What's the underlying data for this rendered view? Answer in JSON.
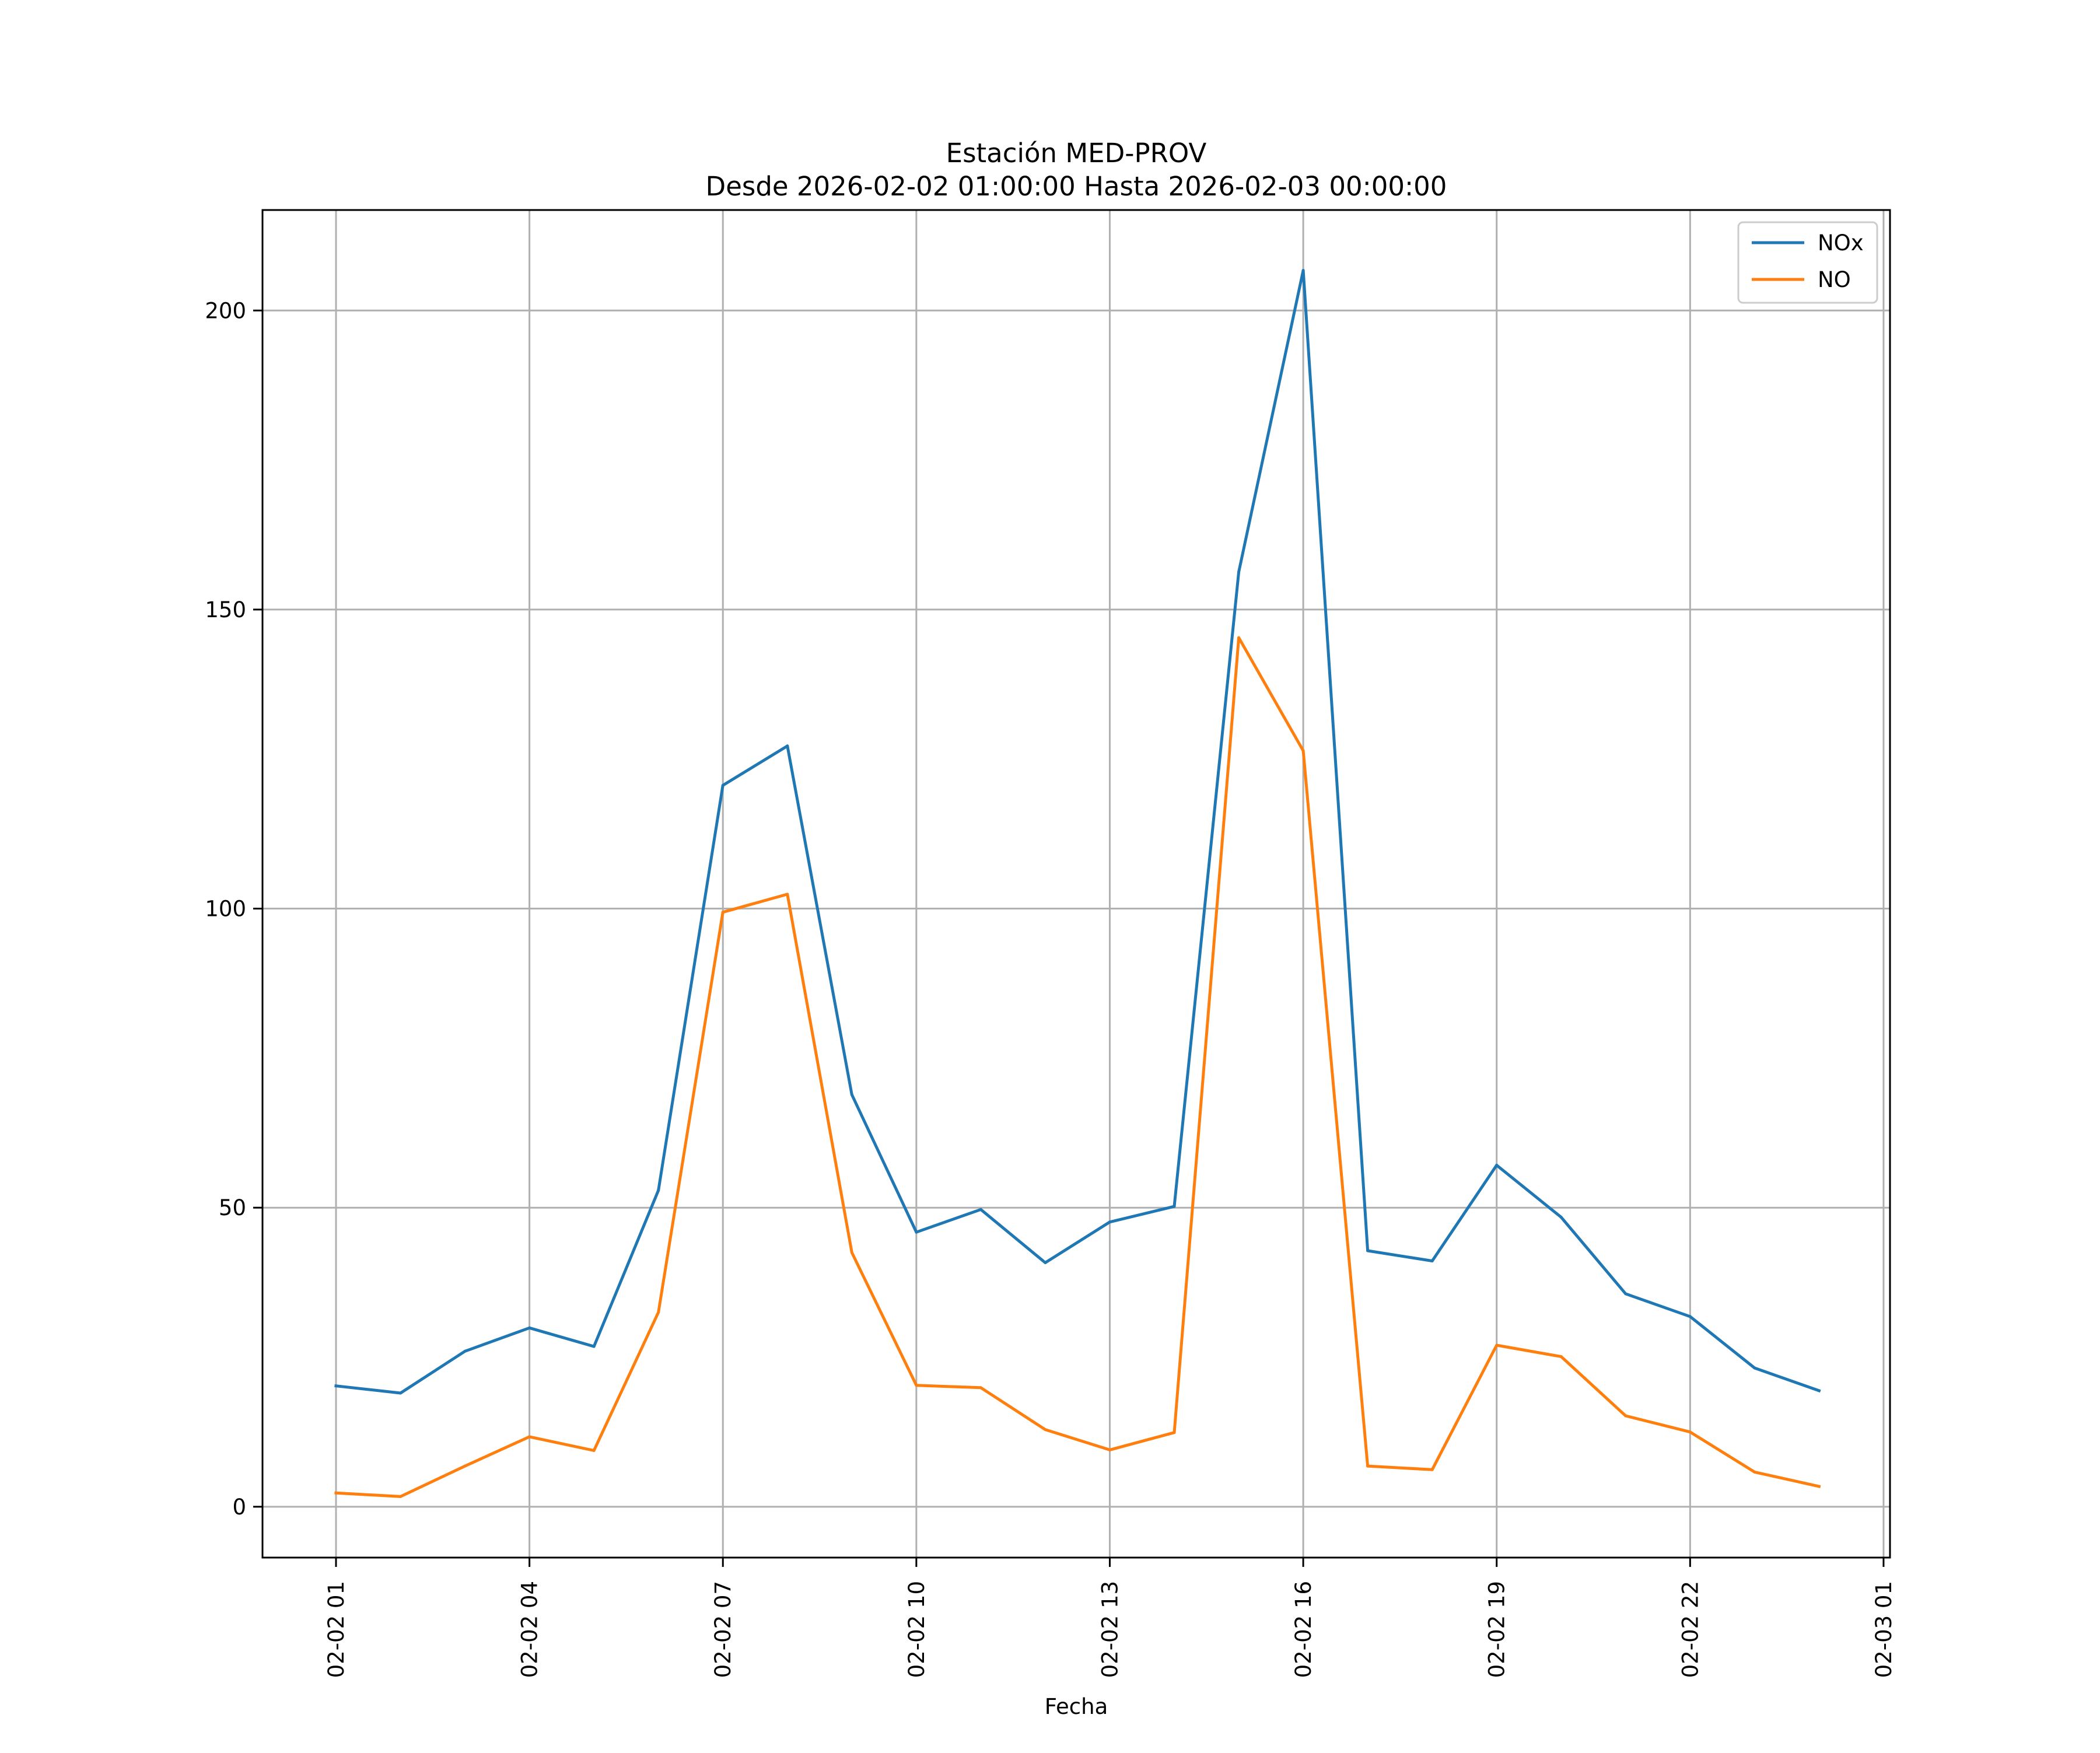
{
  "chart_data": {
    "type": "line",
    "title": "Estación MED-PROV",
    "subtitle": "Desde 2026-02-02 01:00:00 Hasta 2026-02-03 00:00:00",
    "xlabel": "Fecha",
    "ylabel": "",
    "x": [
      "02-02 01",
      "02-02 02",
      "02-02 03",
      "02-02 04",
      "02-02 05",
      "02-02 06",
      "02-02 07",
      "02-02 08",
      "02-02 09",
      "02-02 10",
      "02-02 11",
      "02-02 12",
      "02-02 13",
      "02-02 14",
      "02-02 15",
      "02-02 16",
      "02-02 17",
      "02-02 18",
      "02-02 19",
      "02-02 20",
      "02-02 21",
      "02-02 22",
      "02-02 23",
      "02-03 00"
    ],
    "x_hours": [
      0,
      1,
      2,
      3,
      4,
      5,
      6,
      7,
      8,
      9,
      10,
      11,
      12,
      13,
      14,
      15,
      16,
      17,
      18,
      19,
      20,
      21,
      22,
      23
    ],
    "xticks": [
      {
        "label": "02-02 01",
        "hour": 0
      },
      {
        "label": "02-02 04",
        "hour": 3
      },
      {
        "label": "02-02 07",
        "hour": 6
      },
      {
        "label": "02-02 10",
        "hour": 9
      },
      {
        "label": "02-02 13",
        "hour": 12
      },
      {
        "label": "02-02 16",
        "hour": 15
      },
      {
        "label": "02-02 19",
        "hour": 18
      },
      {
        "label": "02-02 22",
        "hour": 21
      },
      {
        "label": "02-03 01",
        "hour": 24
      }
    ],
    "yticks": [
      0,
      50,
      100,
      150,
      200
    ],
    "ytick_labels": [
      "0",
      "50",
      "100",
      "150",
      "200"
    ],
    "xlim": [
      -1.14,
      24.1
    ],
    "ylim": [
      -8.5,
      216.8
    ],
    "grid": true,
    "legend_position": "top-right",
    "series": [
      {
        "name": "NOx",
        "color": "#1f77b4",
        "values": [
          20.2,
          19.0,
          26.0,
          29.9,
          26.8,
          52.9,
          120.6,
          127.2,
          68.9,
          45.9,
          49.7,
          40.8,
          47.6,
          50.2,
          156.3,
          206.7,
          42.8,
          41.1,
          57.1,
          48.4,
          35.6,
          31.8,
          23.2,
          19.4
        ]
      },
      {
        "name": "NO",
        "color": "#ff7f0e",
        "values": [
          2.3,
          1.7,
          6.8,
          11.7,
          9.4,
          32.5,
          99.4,
          102.4,
          42.5,
          20.3,
          19.9,
          12.9,
          9.5,
          12.4,
          145.3,
          126.4,
          6.8,
          6.2,
          27.0,
          25.1,
          15.2,
          12.5,
          5.8,
          3.4
        ]
      }
    ]
  }
}
